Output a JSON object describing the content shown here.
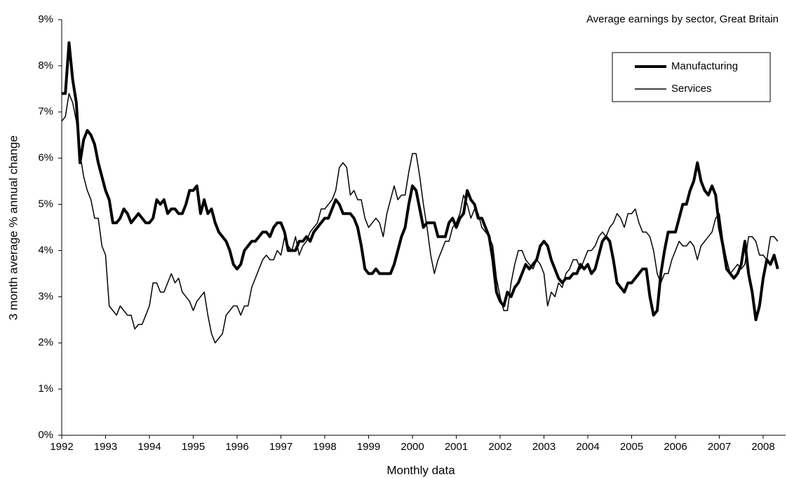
{
  "chart_data": {
    "type": "line",
    "title": "Average earnings by sector, Great Britain",
    "x_label": "Monthly data",
    "y_label": "3 month average % annual change",
    "categories": [
      "1992",
      null,
      null,
      null,
      null,
      null,
      null,
      null,
      null,
      null,
      null,
      null,
      "1993",
      null,
      null,
      null,
      null,
      null,
      null,
      null,
      null,
      null,
      null,
      null,
      "1994",
      null,
      null,
      null,
      null,
      null,
      null,
      null,
      null,
      null,
      null,
      null,
      "1995",
      null,
      null,
      null,
      null,
      null,
      null,
      null,
      null,
      null,
      null,
      null,
      "1996",
      null,
      null,
      null,
      null,
      null,
      null,
      null,
      null,
      null,
      null,
      null,
      "1997",
      null,
      null,
      null,
      null,
      null,
      null,
      null,
      null,
      null,
      null,
      null,
      "1998",
      null,
      null,
      null,
      null,
      null,
      null,
      null,
      null,
      null,
      null,
      null,
      "1999",
      null,
      null,
      null,
      null,
      null,
      null,
      null,
      null,
      null,
      null,
      null,
      "2000",
      null,
      null,
      null,
      null,
      null,
      null,
      null,
      null,
      null,
      null,
      null,
      "2001",
      null,
      null,
      null,
      null,
      null,
      null,
      null,
      null,
      null,
      null,
      null,
      "2002",
      null,
      null,
      null,
      null,
      null,
      null,
      null,
      null,
      null,
      null,
      null,
      "2003",
      null,
      null,
      null,
      null,
      null,
      null,
      null,
      null,
      null,
      null,
      null,
      "2004",
      null,
      null,
      null,
      null,
      null,
      null,
      null,
      null,
      null,
      null,
      null,
      "2005",
      null,
      null,
      null,
      null,
      null,
      null,
      null,
      null,
      null,
      null,
      null,
      "2006",
      null,
      null,
      null,
      null,
      null,
      null,
      null,
      null,
      null,
      null,
      null,
      "2007",
      null,
      null,
      null,
      null,
      null,
      null,
      null,
      null,
      null,
      null,
      null,
      "2008",
      null,
      null,
      null,
      null
    ],
    "series": [
      {
        "name": "Manufacturing",
        "color": "#000000",
        "width": 4,
        "values": [
          7.4,
          7.4,
          8.5,
          7.7,
          7.2,
          5.9,
          6.4,
          6.6,
          6.5,
          6.3,
          5.9,
          5.6,
          5.3,
          5.1,
          4.6,
          4.6,
          4.7,
          4.9,
          4.8,
          4.6,
          4.7,
          4.8,
          4.7,
          4.6,
          4.6,
          4.7,
          5.1,
          5.0,
          5.1,
          4.8,
          4.9,
          4.9,
          4.8,
          4.8,
          5.0,
          5.3,
          5.3,
          5.4,
          4.8,
          5.1,
          4.8,
          4.9,
          4.6,
          4.4,
          4.3,
          4.2,
          4.0,
          3.7,
          3.6,
          3.7,
          4.0,
          4.1,
          4.2,
          4.2,
          4.3,
          4.4,
          4.4,
          4.3,
          4.5,
          4.6,
          4.6,
          4.4,
          4.0,
          4.0,
          4.0,
          4.2,
          4.2,
          4.3,
          4.2,
          4.4,
          4.5,
          4.6,
          4.7,
          4.7,
          4.9,
          5.1,
          5.0,
          4.8,
          4.8,
          4.8,
          4.7,
          4.5,
          4.1,
          3.6,
          3.5,
          3.5,
          3.6,
          3.5,
          3.5,
          3.5,
          3.5,
          3.7,
          4.0,
          4.3,
          4.5,
          5.0,
          5.4,
          5.3,
          4.9,
          4.5,
          4.6,
          4.6,
          4.6,
          4.3,
          4.3,
          4.3,
          4.6,
          4.7,
          4.5,
          4.7,
          4.8,
          5.3,
          5.1,
          5.0,
          4.7,
          4.7,
          4.5,
          4.3,
          3.8,
          3.1,
          2.9,
          2.8,
          3.1,
          3.0,
          3.2,
          3.3,
          3.5,
          3.7,
          3.6,
          3.7,
          3.8,
          4.1,
          4.2,
          4.1,
          3.8,
          3.6,
          3.4,
          3.3,
          3.4,
          3.4,
          3.5,
          3.5,
          3.7,
          3.6,
          3.7,
          3.5,
          3.6,
          3.9,
          4.2,
          4.3,
          4.2,
          3.8,
          3.3,
          3.2,
          3.1,
          3.3,
          3.3,
          3.4,
          3.5,
          3.6,
          3.6,
          3.0,
          2.6,
          2.7,
          3.5,
          4.0,
          4.4,
          4.4,
          4.4,
          4.7,
          5.0,
          5.0,
          5.3,
          5.5,
          5.9,
          5.5,
          5.3,
          5.2,
          5.4,
          5.2,
          4.5,
          4.1,
          3.6,
          3.5,
          3.4,
          3.5,
          3.7,
          4.2,
          3.5,
          3.1,
          2.5,
          2.8,
          3.4,
          3.8,
          3.7,
          3.9,
          3.6
        ]
      },
      {
        "name": "Services",
        "color": "#000000",
        "width": 1.5,
        "values": [
          6.8,
          6.9,
          7.4,
          7.2,
          6.8,
          6.1,
          5.6,
          5.3,
          5.1,
          4.7,
          4.7,
          4.1,
          3.9,
          2.8,
          2.7,
          2.6,
          2.8,
          2.7,
          2.6,
          2.6,
          2.3,
          2.4,
          2.4,
          2.6,
          2.8,
          3.3,
          3.3,
          3.1,
          3.1,
          3.3,
          3.5,
          3.3,
          3.4,
          3.1,
          3.0,
          2.9,
          2.7,
          2.9,
          3.0,
          3.1,
          2.6,
          2.2,
          2.0,
          2.1,
          2.2,
          2.6,
          2.7,
          2.8,
          2.8,
          2.6,
          2.8,
          2.8,
          3.2,
          3.4,
          3.6,
          3.8,
          3.9,
          3.8,
          3.8,
          4.0,
          3.9,
          4.3,
          4.1,
          4.0,
          4.3,
          3.9,
          4.1,
          4.2,
          4.4,
          4.5,
          4.6,
          4.9,
          4.9,
          5.0,
          5.1,
          5.3,
          5.8,
          5.9,
          5.8,
          5.2,
          5.3,
          5.1,
          5.1,
          4.7,
          4.5,
          4.6,
          4.7,
          4.6,
          4.3,
          4.8,
          5.1,
          5.4,
          5.1,
          5.2,
          5.2,
          5.7,
          6.1,
          6.1,
          5.6,
          5.0,
          4.5,
          3.9,
          3.5,
          3.8,
          4.0,
          4.2,
          4.2,
          4.5,
          4.6,
          4.8,
          5.2,
          5.0,
          4.7,
          4.9,
          4.8,
          4.5,
          4.4,
          4.3,
          4.1,
          3.4,
          3.0,
          2.7,
          2.7,
          3.3,
          3.7,
          4.0,
          4.0,
          3.8,
          3.7,
          3.6,
          3.8,
          3.7,
          3.5,
          2.8,
          3.1,
          3.0,
          3.3,
          3.2,
          3.5,
          3.6,
          3.8,
          3.8,
          3.6,
          3.8,
          4.0,
          4.0,
          4.1,
          4.3,
          4.4,
          4.3,
          4.5,
          4.6,
          4.8,
          4.7,
          4.5,
          4.8,
          4.8,
          4.9,
          4.6,
          4.4,
          4.4,
          4.3,
          4.0,
          3.5,
          3.3,
          3.5,
          3.5,
          3.8,
          4.0,
          4.2,
          4.1,
          4.1,
          4.2,
          4.1,
          3.8,
          4.1,
          4.2,
          4.3,
          4.4,
          4.7,
          4.8,
          4.2,
          3.8,
          3.5,
          3.6,
          3.7,
          3.6,
          3.7,
          4.3,
          4.3,
          4.2,
          3.9,
          3.9,
          3.8,
          4.3,
          4.3,
          4.2
        ]
      }
    ],
    "ylim": [
      0,
      9
    ],
    "yticks": [
      {
        "value": 0,
        "label": "0%"
      },
      {
        "value": 1,
        "label": "1%"
      },
      {
        "value": 2,
        "label": "2%"
      },
      {
        "value": 3,
        "label": "3%"
      },
      {
        "value": 4,
        "label": "4%"
      },
      {
        "value": 5,
        "label": "5%"
      },
      {
        "value": 6,
        "label": "6%"
      },
      {
        "value": 7,
        "label": "7%"
      },
      {
        "value": 8,
        "label": "8%"
      },
      {
        "value": 9,
        "label": "9%"
      }
    ],
    "grid": false,
    "legend": "upper right"
  }
}
